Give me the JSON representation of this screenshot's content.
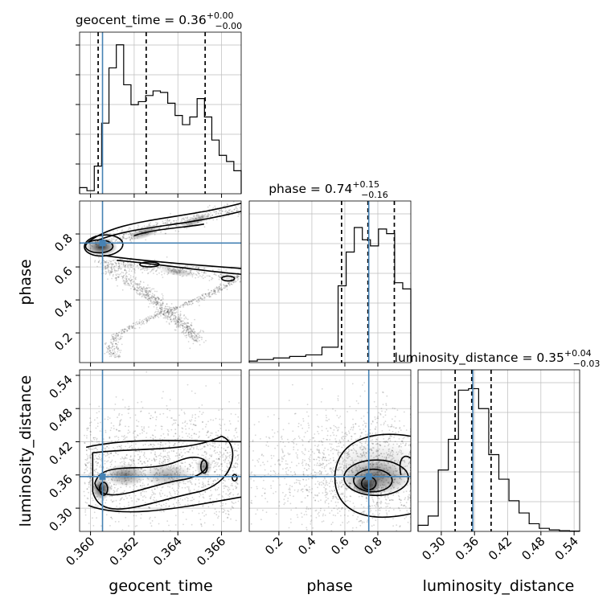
{
  "chart_data": {
    "type": "corner",
    "parameters": [
      {
        "name": "geocent_time",
        "label": "geocent_time",
        "title": {
          "text": "geocent_time = 0.36",
          "plus": "+0.00",
          "minus": "−0.00"
        },
        "range": [
          0.3595,
          0.3669
        ],
        "ticks": [
          0.36,
          0.362,
          0.364,
          0.366
        ],
        "tick_labels": [
          "0.360",
          "0.362",
          "0.364",
          "0.366"
        ],
        "truth": 0.36055,
        "quantiles": [
          0.36035,
          0.36255,
          0.36525
        ],
        "histogram": [
          0.04,
          0.02,
          0.18,
          0.46,
          0.82,
          0.97,
          0.71,
          0.58,
          0.6,
          0.64,
          0.67,
          0.66,
          0.59,
          0.51,
          0.45,
          0.5,
          0.62,
          0.5,
          0.35,
          0.25,
          0.21,
          0.15
        ]
      },
      {
        "name": "phase",
        "label": "phase",
        "title": {
          "text": "phase = 0.74",
          "plus": "+0.15",
          "minus": "−0.16"
        },
        "range": [
          0.02,
          1.0
        ],
        "ticks": [
          0.2,
          0.4,
          0.6,
          0.8
        ],
        "tick_labels": [
          "0.2",
          "0.4",
          "0.6",
          "0.8"
        ],
        "truth": 0.745,
        "quantiles": [
          0.58,
          0.74,
          0.9
        ],
        "histogram": [
          0.01,
          0.02,
          0.02,
          0.03,
          0.03,
          0.04,
          0.04,
          0.05,
          0.05,
          0.1,
          0.1,
          0.5,
          0.72,
          0.88,
          0.8,
          0.76,
          0.87,
          0.84,
          0.52,
          0.48
        ]
      },
      {
        "name": "luminosity_distance",
        "label": "luminosity_distance",
        "title": {
          "text": "luminosity_distance = 0.35",
          "plus": "+0.04",
          "minus": "−0.03"
        },
        "range": [
          0.258,
          0.55
        ],
        "ticks": [
          0.3,
          0.36,
          0.42,
          0.48,
          0.54
        ],
        "tick_labels": [
          "0.30",
          "0.36",
          "0.42",
          "0.48",
          "0.54"
        ],
        "truth": 0.357,
        "quantiles": [
          0.325,
          0.355,
          0.39
        ],
        "histogram": [
          0.04,
          0.1,
          0.4,
          0.6,
          0.92,
          0.93,
          0.8,
          0.5,
          0.34,
          0.2,
          0.12,
          0.05,
          0.02,
          0.01,
          0.005,
          0.002
        ]
      }
    ],
    "pairs": [
      {
        "x": "geocent_time",
        "y": "phase",
        "plot": "2d-density-contours"
      },
      {
        "x": "geocent_time",
        "y": "luminosity_distance",
        "plot": "2d-density-contours"
      },
      {
        "x": "phase",
        "y": "luminosity_distance",
        "plot": "2d-density-contours"
      }
    ],
    "truth_color": "#4682b4",
    "quantile_style": "dashed",
    "grid": true
  }
}
